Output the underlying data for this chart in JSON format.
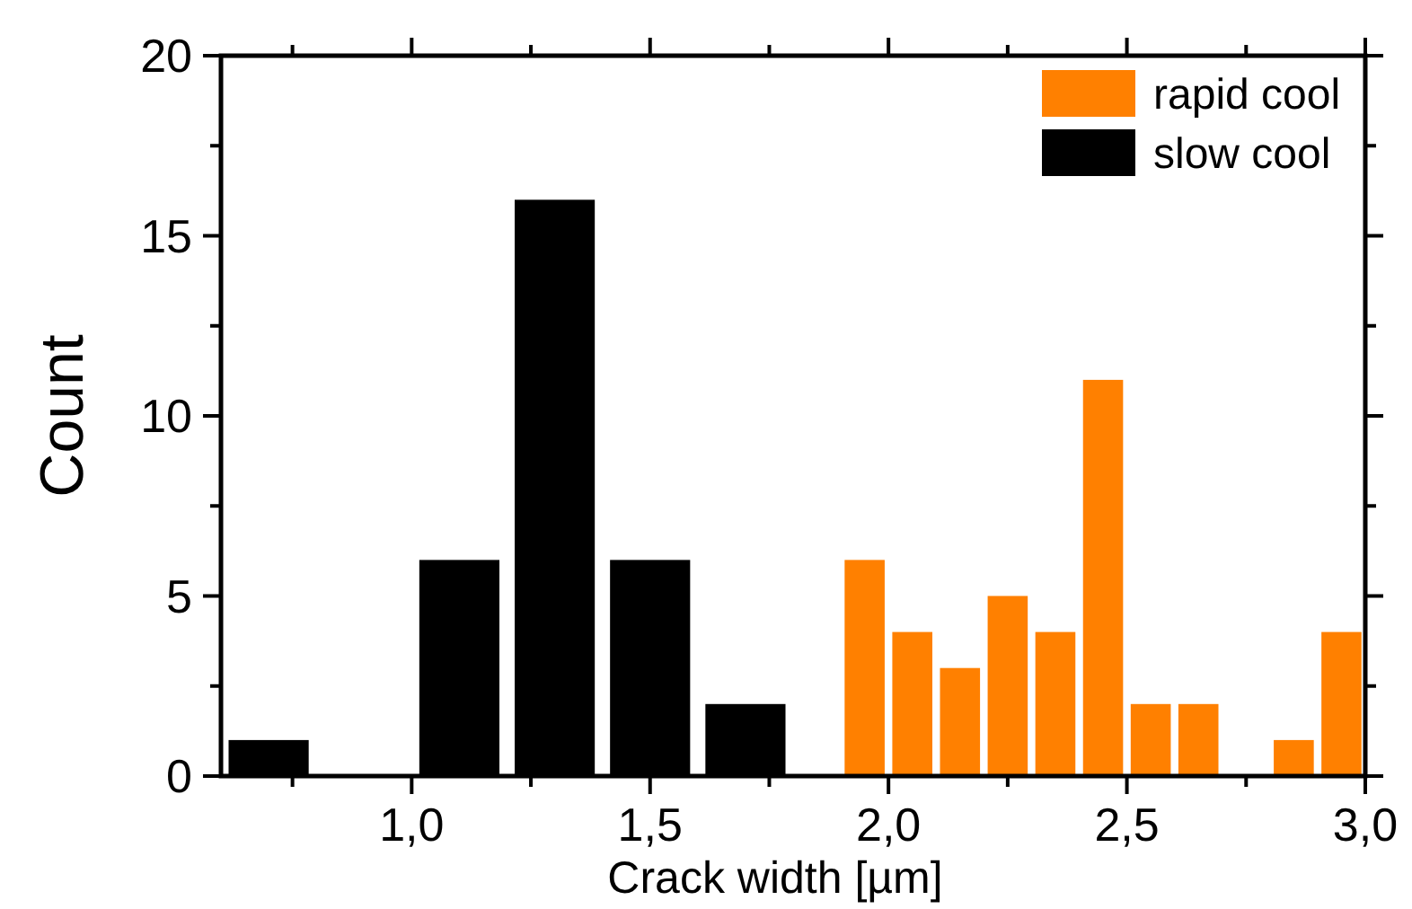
{
  "chart_data": {
    "type": "bar",
    "xlabel": "Crack width [µm]",
    "ylabel": "Count",
    "series": [
      {
        "name": "rapid cool",
        "color": "#ff8000",
        "x": [
          1.95,
          2.05,
          2.15,
          2.25,
          2.35,
          2.45,
          2.55,
          2.65,
          2.75,
          2.85,
          2.95
        ],
        "values": [
          6,
          4,
          3,
          5,
          4,
          11,
          2,
          2,
          0,
          1,
          4
        ]
      },
      {
        "name": "slow cool",
        "color": "#000000",
        "x": [
          0.7,
          0.9,
          1.1,
          1.3,
          1.5,
          1.7
        ],
        "values": [
          1,
          0,
          6,
          16,
          6,
          2
        ]
      }
    ],
    "xlim": [
      0.6,
      3.0
    ],
    "xticks": [
      {
        "value": 0.75,
        "label": null
      },
      {
        "value": 1.0,
        "label": "1,0"
      },
      {
        "value": 1.25,
        "label": null
      },
      {
        "value": 1.5,
        "label": "1,5"
      },
      {
        "value": 1.75,
        "label": null
      },
      {
        "value": 2.0,
        "label": "2,0"
      },
      {
        "value": 2.25,
        "label": null
      },
      {
        "value": 2.5,
        "label": "2,5"
      },
      {
        "value": 2.75,
        "label": null
      },
      {
        "value": 3.0,
        "label": "3,0"
      }
    ],
    "ylim": [
      0,
      20
    ],
    "yticks": [
      {
        "value": 0,
        "label": "0"
      },
      {
        "value": 2.5,
        "label": null
      },
      {
        "value": 5,
        "label": "5"
      },
      {
        "value": 7.5,
        "label": null
      },
      {
        "value": 10,
        "label": "10"
      },
      {
        "value": 12.5,
        "label": null
      },
      {
        "value": 15,
        "label": "15"
      },
      {
        "value": 17.5,
        "label": null
      },
      {
        "value": 20,
        "label": "20"
      }
    ],
    "grid": false,
    "legend": "top right"
  }
}
